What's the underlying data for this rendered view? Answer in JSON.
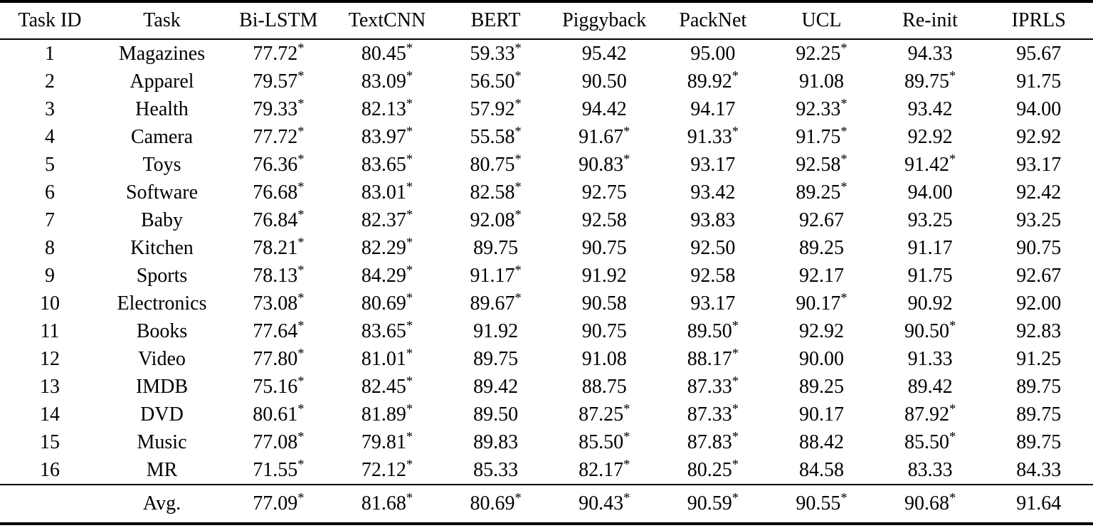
{
  "table": {
    "columns": [
      "Task ID",
      "Task",
      "Bi-LSTM",
      "TextCNN",
      "BERT",
      "Piggyback",
      "PackNet",
      "UCL",
      "Re-init",
      "IPRLS"
    ],
    "rows": [
      [
        "1",
        "Magazines",
        "77.72*",
        "80.45*",
        "59.33*",
        "95.42",
        "95.00",
        "92.25*",
        "94.33",
        "95.67"
      ],
      [
        "2",
        "Apparel",
        "79.57*",
        "83.09*",
        "56.50*",
        "90.50",
        "89.92*",
        "91.08",
        "89.75*",
        "91.75"
      ],
      [
        "3",
        "Health",
        "79.33*",
        "82.13*",
        "57.92*",
        "94.42",
        "94.17",
        "92.33*",
        "93.42",
        "94.00"
      ],
      [
        "4",
        "Camera",
        "77.72*",
        "83.97*",
        "55.58*",
        "91.67*",
        "91.33*",
        "91.75*",
        "92.92",
        "92.92"
      ],
      [
        "5",
        "Toys",
        "76.36*",
        "83.65*",
        "80.75*",
        "90.83*",
        "93.17",
        "92.58*",
        "91.42*",
        "93.17"
      ],
      [
        "6",
        "Software",
        "76.68*",
        "83.01*",
        "82.58*",
        "92.75",
        "93.42",
        "89.25*",
        "94.00",
        "92.42"
      ],
      [
        "7",
        "Baby",
        "76.84*",
        "82.37*",
        "92.08*",
        "92.58",
        "93.83",
        "92.67",
        "93.25",
        "93.25"
      ],
      [
        "8",
        "Kitchen",
        "78.21*",
        "82.29*",
        "89.75",
        "90.75",
        "92.50",
        "89.25",
        "91.17",
        "90.75"
      ],
      [
        "9",
        "Sports",
        "78.13*",
        "84.29*",
        "91.17*",
        "91.92",
        "92.58",
        "92.17",
        "91.75",
        "92.67"
      ],
      [
        "10",
        "Electronics",
        "73.08*",
        "80.69*",
        "89.67*",
        "90.58",
        "93.17",
        "90.17*",
        "90.92",
        "92.00"
      ],
      [
        "11",
        "Books",
        "77.64*",
        "83.65*",
        "91.92",
        "90.75",
        "89.50*",
        "92.92",
        "90.50*",
        "92.83"
      ],
      [
        "12",
        "Video",
        "77.80*",
        "81.01*",
        "89.75",
        "91.08",
        "88.17*",
        "90.00",
        "91.33",
        "91.25"
      ],
      [
        "13",
        "IMDB",
        "75.16*",
        "82.45*",
        "89.42",
        "88.75",
        "87.33*",
        "89.25",
        "89.42",
        "89.75"
      ],
      [
        "14",
        "DVD",
        "80.61*",
        "81.89*",
        "89.50",
        "87.25*",
        "87.33*",
        "90.17",
        "87.92*",
        "89.75"
      ],
      [
        "15",
        "Music",
        "77.08*",
        "79.81*",
        "89.83",
        "85.50*",
        "87.83*",
        "88.42",
        "85.50*",
        "89.75"
      ],
      [
        "16",
        "MR",
        "71.55*",
        "72.12*",
        "85.33",
        "82.17*",
        "80.25*",
        "84.58",
        "83.33",
        "84.33"
      ]
    ],
    "footer": [
      "",
      "Avg.",
      "77.09*",
      "81.68*",
      "80.69*",
      "90.43*",
      "90.59*",
      "90.55*",
      "90.68*",
      "91.64"
    ],
    "significance_marker": "*",
    "text_color": "#000000",
    "background_color": "#ffffff"
  }
}
